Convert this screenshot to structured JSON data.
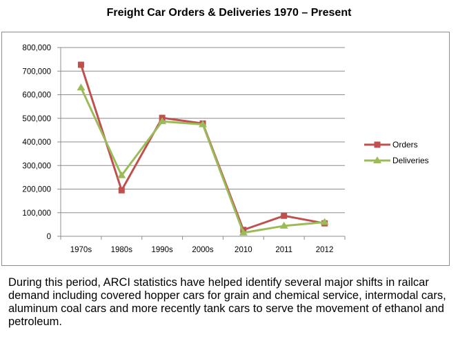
{
  "chart_data": {
    "type": "line",
    "title": "Freight Car Orders & Deliveries 1970 – Present",
    "categories": [
      "1970s",
      "1980s",
      "1990s",
      "2000s",
      "2010",
      "2011",
      "2012"
    ],
    "series": [
      {
        "name": "Orders",
        "values": [
          727000,
          195000,
          502000,
          478000,
          27000,
          87000,
          55000
        ],
        "color": "#c0504d",
        "marker": "square"
      },
      {
        "name": "Deliveries",
        "values": [
          630000,
          258000,
          487000,
          474000,
          15000,
          44000,
          60000
        ],
        "color": "#9bbb59",
        "marker": "triangle"
      }
    ],
    "yticks": [
      "0",
      "100,000",
      "200,000",
      "300,000",
      "400,000",
      "500,000",
      "600,000",
      "700,000",
      "800,000"
    ],
    "ylim": [
      0,
      800000
    ],
    "xlabel": "",
    "ylabel": "",
    "grid": true,
    "legend": "right"
  },
  "caption": "During this period, ARCI statistics have helped identify several major shifts in railcar demand including covered hopper cars for grain and chemical service, intermodal cars, aluminum coal cars and more recently tank cars to serve the movement of ethanol and petroleum."
}
